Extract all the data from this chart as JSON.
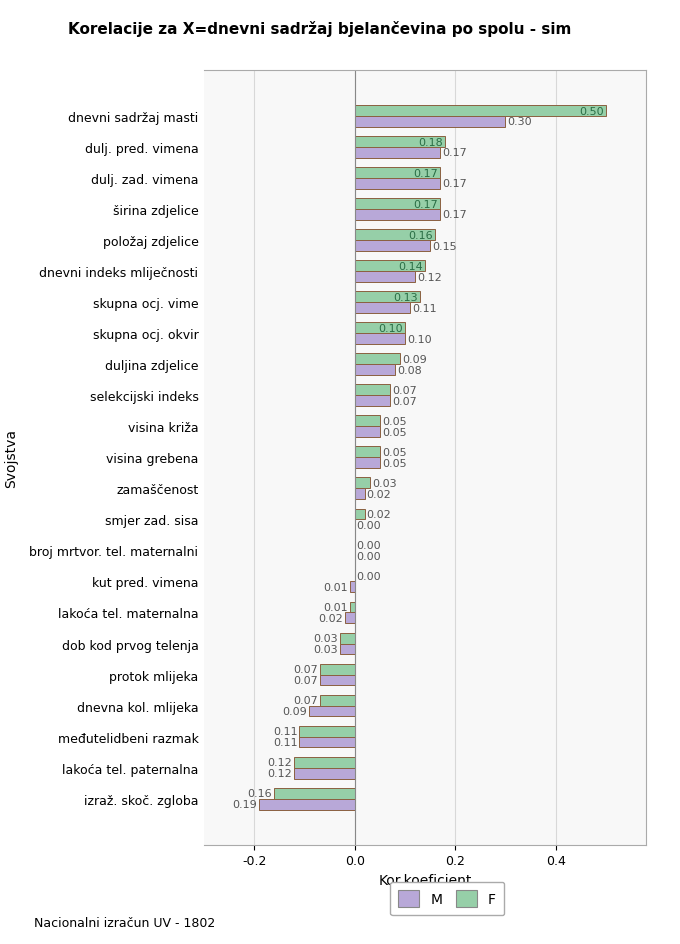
{
  "title": "Korelacije za X=dnevni sadržaj bjelančevina po spolu - sim",
  "xlabel": "Kor.koeficient",
  "ylabel": "Svojstva",
  "footnote": "Nacionalni izračun UV - 1802",
  "categories": [
    "dnevni sadržaj masti",
    "dulj. pred. vimena",
    "dulj. zad. vimena",
    "širina zdjelice",
    "položaj zdjelice",
    "dnevni indeks mliječnosti",
    "skupna ocj. vime",
    "skupna ocj. okvir",
    "duljina zdjelice",
    "selekcijski indeks",
    "visina križa",
    "visina grebena",
    "zamaščenost",
    "smjer zad. sisa",
    "broj mrtvor. tel. maternalni",
    "kut pred. vimena",
    "lakoća tel. maternalna",
    "dob kod prvog telenja",
    "protok mlijeka",
    "dnevna kol. mlijeka",
    "međutelidbeni razmak",
    "lakoća tel. paternalna",
    "izraž. skoč. zgloba"
  ],
  "F_values": [
    0.5,
    0.18,
    0.17,
    0.17,
    0.16,
    0.14,
    0.13,
    0.1,
    0.09,
    0.07,
    0.05,
    0.05,
    0.03,
    0.02,
    0.0,
    0.0,
    -0.01,
    -0.03,
    -0.07,
    -0.07,
    -0.11,
    -0.12,
    -0.16
  ],
  "M_values": [
    0.3,
    0.17,
    0.17,
    0.17,
    0.15,
    0.12,
    0.11,
    0.1,
    0.08,
    0.07,
    0.05,
    0.05,
    0.02,
    0.0,
    0.0,
    -0.01,
    -0.02,
    -0.03,
    -0.07,
    -0.09,
    -0.11,
    -0.12,
    -0.19
  ],
  "M_color": "#b8a8d8",
  "F_color": "#96cfa8",
  "bar_edge_color": "#8B6040",
  "background_color": "#ffffff",
  "grid_color": "#d8d8d8",
  "xlim_left": -0.3,
  "xlim_right": 0.58,
  "xticks": [
    -0.2,
    0.0,
    0.2,
    0.4
  ],
  "title_fontsize": 11,
  "axis_label_fontsize": 10,
  "tick_fontsize": 9,
  "value_fontsize": 8,
  "bar_height": 0.35
}
